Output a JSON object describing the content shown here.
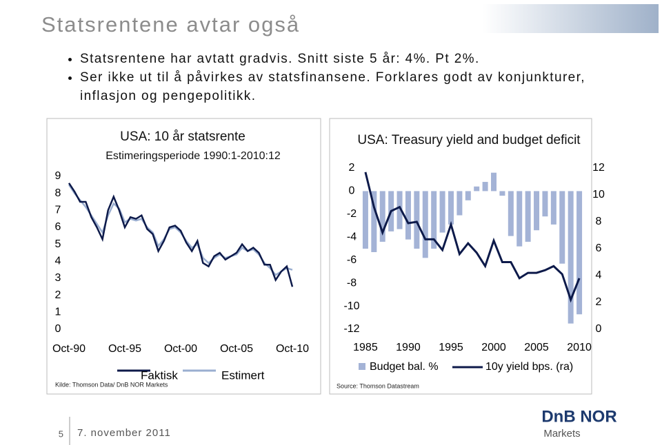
{
  "title": "Statsrentene avtar også",
  "bullets": [
    "Statsrentene har avtatt gradvis. Snitt siste 5 år: 4%. Pt 2%.",
    "Ser ikke ut til å påvirkes av statsfinansene. Forklares godt av konjunkturer, inflasjon og pengepolitikk."
  ],
  "chart_data": [
    {
      "type": "line",
      "title": "USA: 10 år statsrente",
      "subtitle": "Estimeringsperiode 1990:1-2010:12",
      "categories": [
        "Oct-90",
        null,
        null,
        null,
        null,
        null,
        null,
        null,
        null,
        null,
        "Oct-95",
        null,
        null,
        null,
        null,
        null,
        null,
        null,
        null,
        null,
        "Oct-00",
        null,
        null,
        null,
        null,
        null,
        null,
        null,
        null,
        null,
        "Oct-05",
        null,
        null,
        null,
        null,
        null,
        null,
        null,
        null,
        null,
        "Oct-10"
      ],
      "series": [
        {
          "name": "Faktisk",
          "color": "#0d1a4a",
          "values": [
            8.6,
            8.1,
            7.5,
            7.5,
            6.6,
            6.0,
            5.3,
            7.0,
            7.8,
            7.0,
            6.0,
            6.6,
            6.5,
            6.7,
            5.9,
            5.6,
            4.6,
            5.2,
            6.0,
            6.1,
            5.8,
            5.1,
            4.6,
            5.2,
            3.9,
            3.7,
            4.3,
            4.5,
            4.1,
            4.3,
            4.5,
            5.0,
            4.6,
            4.8,
            4.5,
            3.8,
            3.8,
            2.9,
            3.4,
            3.7,
            2.5
          ]
        },
        {
          "name": "Estimert",
          "color": "#9aaed0",
          "values": [
            8.5,
            8.0,
            7.6,
            7.2,
            6.7,
            6.2,
            5.7,
            6.7,
            7.4,
            7.1,
            6.3,
            6.5,
            6.4,
            6.5,
            6.0,
            5.7,
            4.9,
            5.3,
            5.9,
            6.0,
            5.7,
            5.2,
            4.8,
            5.0,
            4.2,
            3.9,
            4.2,
            4.4,
            4.2,
            4.3,
            4.4,
            4.8,
            4.6,
            4.7,
            4.4,
            3.9,
            3.6,
            3.2,
            3.4,
            3.6,
            3.5
          ]
        }
      ],
      "ylim": [
        0,
        9
      ],
      "yticks": [
        0,
        1,
        2,
        3,
        4,
        5,
        6,
        7,
        8,
        9
      ],
      "grid": false,
      "source": "Kilde: Thomson Data/ DnB NOR Markets"
    },
    {
      "type": "combo",
      "title": "USA: Treasury yield and budget deficit",
      "x": [
        1985,
        1986,
        1987,
        1988,
        1989,
        1990,
        1991,
        1992,
        1993,
        1994,
        1995,
        1996,
        1997,
        1998,
        1999,
        2000,
        2001,
        2002,
        2003,
        2004,
        2005,
        2006,
        2007,
        2008,
        2009,
        2010
      ],
      "xlim": [
        1984.2,
        2010.8
      ],
      "xticks": [
        1985,
        1990,
        1995,
        2000,
        2005,
        2010
      ],
      "series": [
        {
          "name": "Budget bal. %",
          "type": "bar",
          "color": "#a4b3d6",
          "values": [
            -5.0,
            -5.3,
            -4.4,
            -3.5,
            -3.3,
            -4.2,
            -5.0,
            -5.8,
            -5.0,
            -3.6,
            -2.9,
            -2.1,
            -0.8,
            0.4,
            0.8,
            1.6,
            -0.4,
            -3.9,
            -4.8,
            -4.4,
            -3.4,
            -2.2,
            -2.9,
            -6.3,
            -11.5,
            -10.7
          ]
        },
        {
          "name": "10y yield bps. (ra)",
          "type": "line",
          "axis": "y2",
          "color": "#0d1a4a",
          "values": [
            11.7,
            9.1,
            7.2,
            8.8,
            9.1,
            7.9,
            8.0,
            6.7,
            6.7,
            5.9,
            7.8,
            5.6,
            6.4,
            5.7,
            4.7,
            6.6,
            5.0,
            5.0,
            3.8,
            4.2,
            4.2,
            4.4,
            4.7,
            4.1,
            2.2,
            3.8
          ]
        }
      ],
      "ylim": [
        -12,
        2
      ],
      "yticks": [
        -12,
        -10,
        -8,
        -6,
        -4,
        -2,
        0,
        2
      ],
      "y2lim": [
        0,
        12
      ],
      "y2ticks": [
        0,
        2,
        4,
        6,
        8,
        10,
        12
      ],
      "grid": false,
      "source": "Source: Thomson Datastream"
    }
  ],
  "footer": {
    "page": "5",
    "date": "7. november 2011",
    "logo": "DnB NOR",
    "logo_sub": "Markets"
  }
}
